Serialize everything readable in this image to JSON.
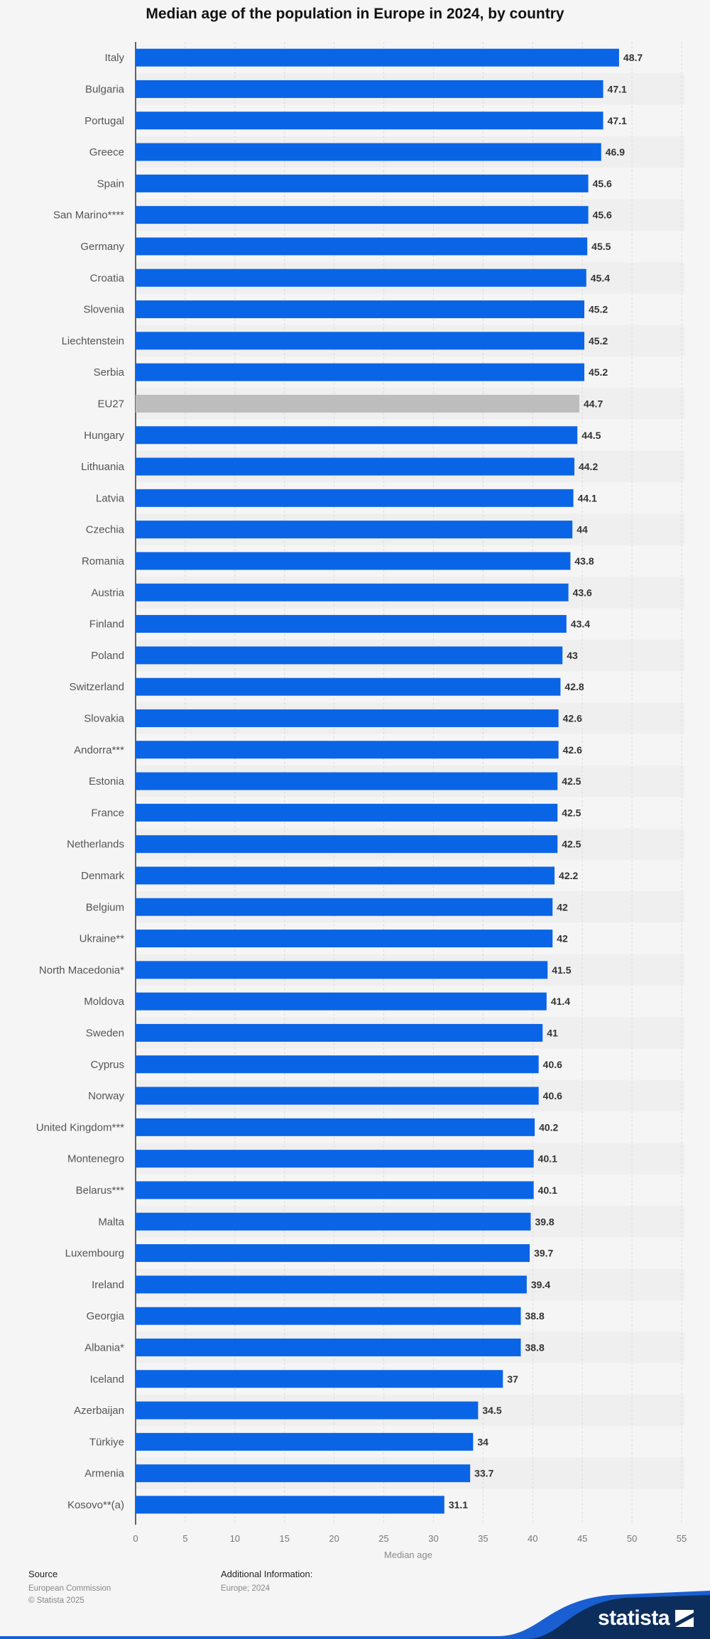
{
  "chart_data": {
    "type": "bar",
    "orientation": "horizontal",
    "title": "Median age of the population in Europe in 2024, by country",
    "xlabel": "Median age",
    "ylabel": "",
    "xlim": [
      0,
      55
    ],
    "xticks": [
      0,
      5,
      10,
      15,
      20,
      25,
      30,
      35,
      40,
      45,
      50,
      55
    ],
    "grid": true,
    "bar_color": "#0a64e6",
    "highlight_color": "#bdbdbd",
    "highlight_category": "EU27",
    "categories": [
      "Italy",
      "Bulgaria",
      "Portugal",
      "Greece",
      "Spain",
      "San Marino****",
      "Germany",
      "Croatia",
      "Slovenia",
      "Liechtenstein",
      "Serbia",
      "EU27",
      "Hungary",
      "Lithuania",
      "Latvia",
      "Czechia",
      "Romania",
      "Austria",
      "Finland",
      "Poland",
      "Switzerland",
      "Slovakia",
      "Andorra***",
      "Estonia",
      "France",
      "Netherlands",
      "Denmark",
      "Belgium",
      "Ukraine**",
      "North Macedonia*",
      "Moldova",
      "Sweden",
      "Cyprus",
      "Norway",
      "United Kingdom***",
      "Montenegro",
      "Belarus***",
      "Malta",
      "Luxembourg",
      "Ireland",
      "Georgia",
      "Albania*",
      "Iceland",
      "Azerbaijan",
      "Türkiye",
      "Armenia",
      "Kosovo**(a)"
    ],
    "values": [
      48.7,
      47.1,
      47.1,
      46.9,
      45.6,
      45.6,
      45.5,
      45.4,
      45.2,
      45.2,
      45.2,
      44.7,
      44.5,
      44.2,
      44.1,
      44,
      43.8,
      43.6,
      43.4,
      43,
      42.8,
      42.6,
      42.6,
      42.5,
      42.5,
      42.5,
      42.2,
      42,
      42,
      41.5,
      41.4,
      41,
      40.6,
      40.6,
      40.2,
      40.1,
      40.1,
      39.8,
      39.7,
      39.4,
      38.8,
      38.8,
      37,
      34.5,
      34,
      33.7,
      31.1
    ]
  },
  "footer": {
    "source_heading": "Source",
    "source_lines": [
      "European Commission",
      "© Statista 2025"
    ],
    "info_heading": "Additional Information:",
    "info_lines": [
      "Europe; 2024"
    ]
  },
  "brand": {
    "name": "statista",
    "wave_color": "#0b2e5c",
    "accent_color": "#1a5fd1"
  }
}
